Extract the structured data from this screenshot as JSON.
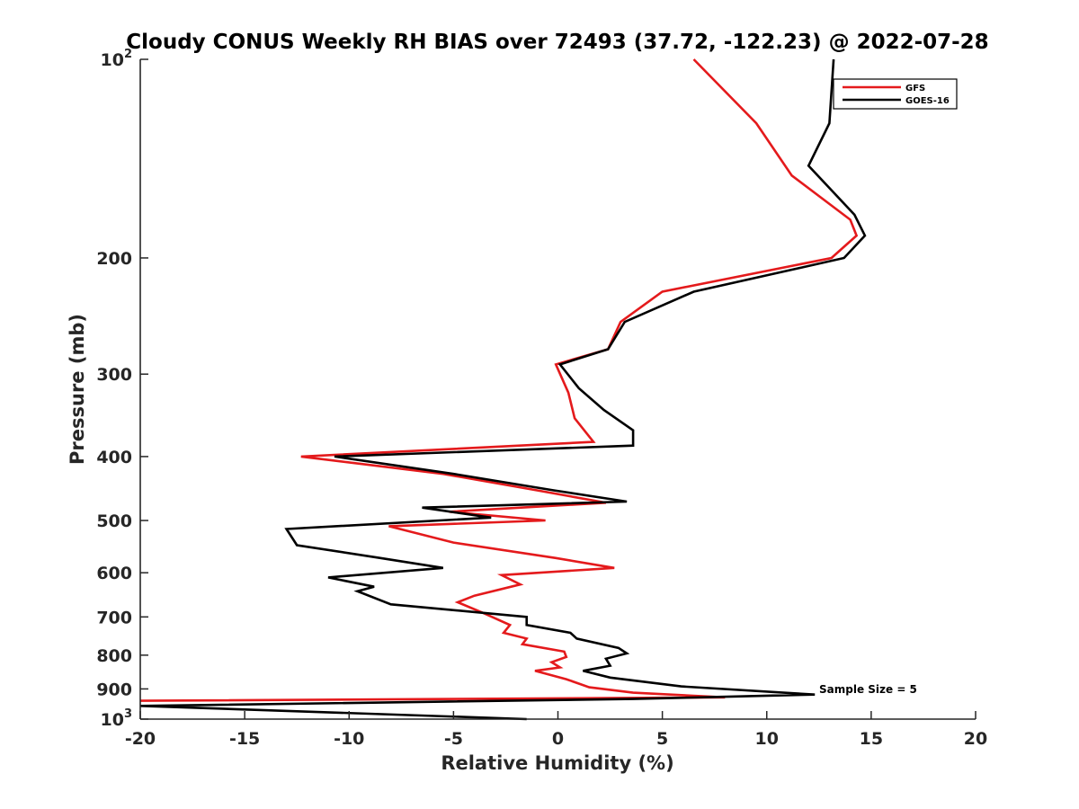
{
  "chart_data": {
    "type": "line",
    "title": "Cloudy CONUS Weekly RH BIAS over 72493 (37.72, -122.23) @ 2022-07-28",
    "xlabel": "Relative Humidity (%)",
    "ylabel": "Pressure (mb)",
    "xlim": [
      -20,
      20
    ],
    "ylim": [
      100,
      1000
    ],
    "y_scale": "log",
    "y_reversed": true,
    "grid": false,
    "legend_position": "top-right",
    "x_ticks": [
      -20,
      -15,
      -10,
      -5,
      0,
      5,
      10,
      15,
      20
    ],
    "x_tick_labels": [
      "-20",
      "-15",
      "-10",
      "-5",
      "0",
      "5",
      "10",
      "15",
      "20"
    ],
    "y_ticks": [
      100,
      200,
      300,
      400,
      500,
      600,
      700,
      800,
      900,
      1000
    ],
    "y_tick_labels": [
      {
        "base": "10",
        "exp": "2"
      },
      {
        "base": "200",
        "exp": ""
      },
      {
        "base": "300",
        "exp": ""
      },
      {
        "base": "400",
        "exp": ""
      },
      {
        "base": "500",
        "exp": ""
      },
      {
        "base": "600",
        "exp": ""
      },
      {
        "base": "700",
        "exp": ""
      },
      {
        "base": "800",
        "exp": ""
      },
      {
        "base": "900",
        "exp": ""
      },
      {
        "base": "10",
        "exp": "3"
      }
    ],
    "annotation": "Sample Size = 5",
    "series": [
      {
        "name": "GFS",
        "color": "#e41a1c",
        "points": [
          [
            6.5,
            100
          ],
          [
            9.5,
            125
          ],
          [
            11.2,
            150
          ],
          [
            14,
            175
          ],
          [
            14.3,
            185
          ],
          [
            13.1,
            200
          ],
          [
            5.0,
            225
          ],
          [
            3.0,
            250
          ],
          [
            2.4,
            275
          ],
          [
            -0.1,
            290
          ],
          [
            0.5,
            320
          ],
          [
            0.8,
            350
          ],
          [
            1.7,
            380
          ],
          [
            -12.3,
            400
          ],
          [
            -5.5,
            425
          ],
          [
            -1.0,
            450
          ],
          [
            2.3,
            470
          ],
          [
            -5.2,
            485
          ],
          [
            -0.6,
            500
          ],
          [
            -8.1,
            510
          ],
          [
            -5.0,
            540
          ],
          [
            -0.1,
            570
          ],
          [
            2.7,
            590
          ],
          [
            -2.7,
            605
          ],
          [
            -1.8,
            625
          ],
          [
            -4.0,
            650
          ],
          [
            -4.8,
            665
          ],
          [
            -3.6,
            690
          ],
          [
            -2.3,
            720
          ],
          [
            -2.6,
            740
          ],
          [
            -1.5,
            755
          ],
          [
            -1.7,
            770
          ],
          [
            0.3,
            790
          ],
          [
            0.4,
            805
          ],
          [
            -0.3,
            820
          ],
          [
            0.1,
            835
          ],
          [
            -1.1,
            845
          ],
          [
            0.4,
            870
          ],
          [
            1.5,
            895
          ],
          [
            3.6,
            912
          ],
          [
            8.0,
            927
          ],
          [
            -20,
            938
          ]
        ]
      },
      {
        "name": "GOES-16",
        "color": "#000000",
        "points": [
          [
            13.2,
            100
          ],
          [
            13.0,
            125
          ],
          [
            12.0,
            145
          ],
          [
            14.2,
            172
          ],
          [
            14.7,
            185
          ],
          [
            13.7,
            200
          ],
          [
            6.5,
            225
          ],
          [
            3.2,
            250
          ],
          [
            2.4,
            275
          ],
          [
            0.1,
            290
          ],
          [
            1.0,
            315
          ],
          [
            2.2,
            340
          ],
          [
            3.6,
            365
          ],
          [
            3.6,
            385
          ],
          [
            -10.7,
            400
          ],
          [
            -5.0,
            425
          ],
          [
            -0.2,
            450
          ],
          [
            3.3,
            468
          ],
          [
            -6.5,
            478
          ],
          [
            -3.2,
            495
          ],
          [
            -13.0,
            515
          ],
          [
            -12.5,
            545
          ],
          [
            -8.5,
            570
          ],
          [
            -5.5,
            590
          ],
          [
            -11.0,
            610
          ],
          [
            -8.8,
            630
          ],
          [
            -9.6,
            640
          ],
          [
            -8.0,
            670
          ],
          [
            -1.5,
            700
          ],
          [
            -1.5,
            720
          ],
          [
            0.6,
            740
          ],
          [
            0.9,
            755
          ],
          [
            2.9,
            780
          ],
          [
            3.3,
            795
          ],
          [
            2.3,
            810
          ],
          [
            2.5,
            830
          ],
          [
            1.2,
            845
          ],
          [
            2.5,
            865
          ],
          [
            5.9,
            892
          ],
          [
            12.3,
            918
          ],
          [
            3.6,
            932
          ],
          [
            -20,
            955
          ],
          [
            -1.5,
            1000
          ]
        ]
      }
    ]
  }
}
